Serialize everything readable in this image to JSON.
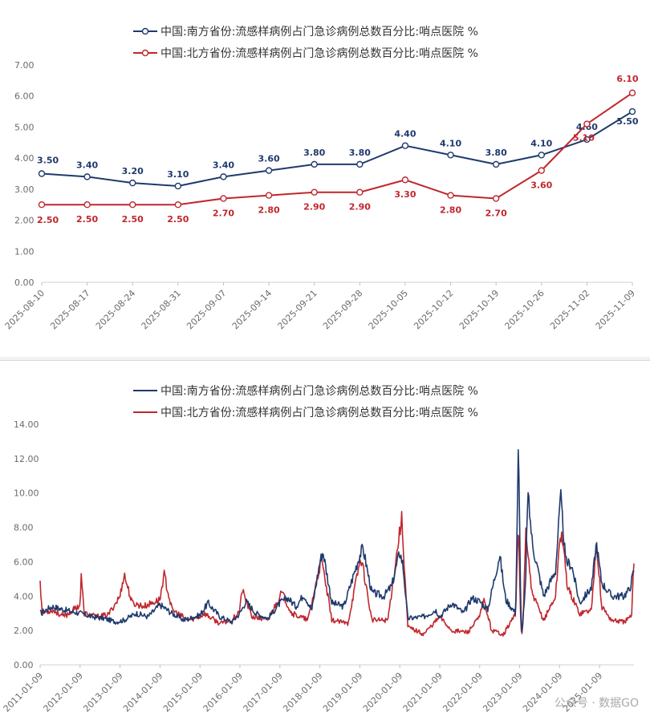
{
  "chart_data": [
    {
      "type": "line",
      "x": [
        "2025-08-10",
        "2025-08-17",
        "2025-08-24",
        "2025-08-31",
        "2025-09-07",
        "2025-09-14",
        "2025-09-21",
        "2025-09-28",
        "2025-10-05",
        "2025-10-12",
        "2025-10-19",
        "2025-10-26",
        "2025-11-02",
        "2025-11-09"
      ],
      "series": [
        {
          "name": "中国:南方省份:流感样病例占门急诊病例总数百分比:哨点医院 %",
          "color": "#1f3a6e",
          "values": [
            3.5,
            3.4,
            3.2,
            3.1,
            3.4,
            3.6,
            3.8,
            3.8,
            4.4,
            4.1,
            3.8,
            4.1,
            4.6,
            5.5
          ],
          "labels": [
            "3.50",
            "3.40",
            "3.20",
            "3.10",
            "3.40",
            "3.60",
            "3.80",
            "3.80",
            "4.40",
            "4.10",
            "3.80",
            "4.10",
            "4.60",
            "5.50"
          ]
        },
        {
          "name": "中国:北方省份:流感样病例占门急诊病例总数百分比:哨点医院 %",
          "color": "#c0272d",
          "values": [
            2.5,
            2.5,
            2.5,
            2.5,
            2.7,
            2.8,
            2.9,
            2.9,
            3.3,
            2.8,
            2.7,
            3.6,
            5.1,
            6.1
          ],
          "labels": [
            "2.50",
            "2.50",
            "2.50",
            "2.50",
            "2.70",
            "2.80",
            "2.90",
            "2.90",
            "3.30",
            "2.80",
            "2.70",
            "3.60",
            "5.10",
            "6.10"
          ]
        }
      ],
      "yticks": [
        "0.00",
        "1.00",
        "2.00",
        "3.00",
        "4.00",
        "5.00",
        "6.00",
        "7.00"
      ],
      "ylim": [
        0,
        7
      ]
    },
    {
      "type": "line",
      "x": [
        "2011-01-09",
        "2012-01-09",
        "2013-01-09",
        "2014-01-09",
        "2015-01-09",
        "2016-01-09",
        "2017-01-09",
        "2018-01-09",
        "2019-01-09",
        "2020-01-09",
        "2021-01-09",
        "2022-01-09",
        "2023-01-09",
        "2024-01-09",
        "2025-01-09"
      ],
      "series": [
        {
          "name": "中国:南方省份:流感样病例占门急诊病例总数百分比:哨点医院 %",
          "color": "#1f3a6e",
          "keypoints": [
            [
              2011.0,
              3.0
            ],
            [
              2011.3,
              3.4
            ],
            [
              2011.6,
              3.2
            ],
            [
              2012.0,
              3.0
            ],
            [
              2012.3,
              2.8
            ],
            [
              2012.6,
              2.7
            ],
            [
              2012.9,
              2.5
            ],
            [
              2013.1,
              2.6
            ],
            [
              2013.4,
              3.0
            ],
            [
              2013.7,
              2.8
            ],
            [
              2014.0,
              3.5
            ],
            [
              2014.3,
              3.0
            ],
            [
              2014.6,
              2.6
            ],
            [
              2015.0,
              2.9
            ],
            [
              2015.2,
              3.6
            ],
            [
              2015.5,
              2.8
            ],
            [
              2015.8,
              2.5
            ],
            [
              2016.0,
              3.0
            ],
            [
              2016.15,
              3.7
            ],
            [
              2016.4,
              3.0
            ],
            [
              2016.7,
              2.7
            ],
            [
              2017.0,
              3.6
            ],
            [
              2017.2,
              3.9
            ],
            [
              2017.4,
              3.4
            ],
            [
              2017.6,
              4.1
            ],
            [
              2017.8,
              3.2
            ],
            [
              2018.0,
              6.0
            ],
            [
              2018.08,
              6.6
            ],
            [
              2018.3,
              3.6
            ],
            [
              2018.6,
              3.4
            ],
            [
              2019.0,
              6.4
            ],
            [
              2019.08,
              6.8
            ],
            [
              2019.3,
              4.2
            ],
            [
              2019.6,
              4.0
            ],
            [
              2019.8,
              4.6
            ],
            [
              2020.0,
              6.6
            ],
            [
              2020.08,
              5.8
            ],
            [
              2020.2,
              2.7
            ],
            [
              2020.6,
              2.8
            ],
            [
              2020.9,
              3.2
            ],
            [
              2021.0,
              2.8
            ],
            [
              2021.3,
              3.6
            ],
            [
              2021.6,
              3.0
            ],
            [
              2021.8,
              3.9
            ],
            [
              2022.0,
              3.7
            ],
            [
              2022.2,
              3.2
            ],
            [
              2022.5,
              6.4
            ],
            [
              2022.65,
              3.8
            ],
            [
              2022.9,
              3.0
            ],
            [
              2022.97,
              13.0
            ],
            [
              2023.02,
              4.5
            ],
            [
              2023.05,
              1.6
            ],
            [
              2023.15,
              4.6
            ],
            [
              2023.2,
              10.1
            ],
            [
              2023.32,
              7.0
            ],
            [
              2023.6,
              4.0
            ],
            [
              2023.9,
              5.5
            ],
            [
              2024.0,
              9.0
            ],
            [
              2024.03,
              9.7
            ],
            [
              2024.15,
              6.0
            ],
            [
              2024.3,
              5.8
            ],
            [
              2024.5,
              3.6
            ],
            [
              2024.8,
              4.5
            ],
            [
              2024.92,
              7.1
            ],
            [
              2025.05,
              4.8
            ],
            [
              2025.3,
              4.0
            ],
            [
              2025.6,
              4.0
            ],
            [
              2025.75,
              4.4
            ],
            [
              2025.86,
              5.5
            ]
          ]
        },
        {
          "name": "中国:北方省份:流感样病例占门急诊病例总数百分比:哨点医院 %",
          "color": "#c0272d",
          "keypoints": [
            [
              2011.0,
              5.0
            ],
            [
              2011.05,
              3.0
            ],
            [
              2011.3,
              3.2
            ],
            [
              2011.6,
              2.8
            ],
            [
              2012.0,
              3.5
            ],
            [
              2012.03,
              5.2
            ],
            [
              2012.1,
              3.0
            ],
            [
              2012.4,
              2.8
            ],
            [
              2012.7,
              2.9
            ],
            [
              2013.0,
              4.0
            ],
            [
              2013.1,
              5.3
            ],
            [
              2013.3,
              3.6
            ],
            [
              2013.6,
              3.4
            ],
            [
              2014.0,
              3.8
            ],
            [
              2014.1,
              5.3
            ],
            [
              2014.3,
              3.2
            ],
            [
              2014.7,
              2.6
            ],
            [
              2015.0,
              2.8
            ],
            [
              2015.1,
              3.0
            ],
            [
              2015.5,
              2.4
            ],
            [
              2015.8,
              2.6
            ],
            [
              2016.0,
              3.2
            ],
            [
              2016.05,
              4.4
            ],
            [
              2016.3,
              2.8
            ],
            [
              2016.7,
              2.6
            ],
            [
              2017.0,
              4.0
            ],
            [
              2017.05,
              4.2
            ],
            [
              2017.3,
              3.0
            ],
            [
              2017.7,
              2.6
            ],
            [
              2018.0,
              5.7
            ],
            [
              2018.05,
              6.0
            ],
            [
              2018.3,
              2.6
            ],
            [
              2018.7,
              2.4
            ],
            [
              2019.0,
              6.0
            ],
            [
              2019.05,
              6.1
            ],
            [
              2019.3,
              2.6
            ],
            [
              2019.7,
              2.6
            ],
            [
              2020.0,
              7.8
            ],
            [
              2020.05,
              8.5
            ],
            [
              2020.2,
              2.2
            ],
            [
              2020.6,
              1.8
            ],
            [
              2021.0,
              2.8
            ],
            [
              2021.3,
              2.0
            ],
            [
              2021.7,
              1.9
            ],
            [
              2022.0,
              2.8
            ],
            [
              2022.1,
              3.8
            ],
            [
              2022.3,
              2.0
            ],
            [
              2022.6,
              1.8
            ],
            [
              2022.9,
              3.0
            ],
            [
              2022.97,
              8.4
            ],
            [
              2023.02,
              3.0
            ],
            [
              2023.05,
              1.4
            ],
            [
              2023.1,
              3.5
            ],
            [
              2023.15,
              7.9
            ],
            [
              2023.3,
              4.2
            ],
            [
              2023.6,
              2.6
            ],
            [
              2023.9,
              4.0
            ],
            [
              2024.0,
              7.2
            ],
            [
              2024.05,
              7.7
            ],
            [
              2024.2,
              4.5
            ],
            [
              2024.5,
              3.0
            ],
            [
              2024.8,
              3.2
            ],
            [
              2024.92,
              7.3
            ],
            [
              2025.05,
              3.4
            ],
            [
              2025.3,
              2.6
            ],
            [
              2025.6,
              2.5
            ],
            [
              2025.8,
              2.8
            ],
            [
              2025.86,
              6.1
            ]
          ]
        }
      ],
      "yticks": [
        "0.00",
        "2.00",
        "4.00",
        "6.00",
        "8.00",
        "10.00",
        "12.00",
        "14.00"
      ],
      "ylim": [
        0,
        14
      ],
      "xlim": [
        2011.0,
        2025.86
      ]
    }
  ],
  "watermark": "公众号 · 数据GO"
}
